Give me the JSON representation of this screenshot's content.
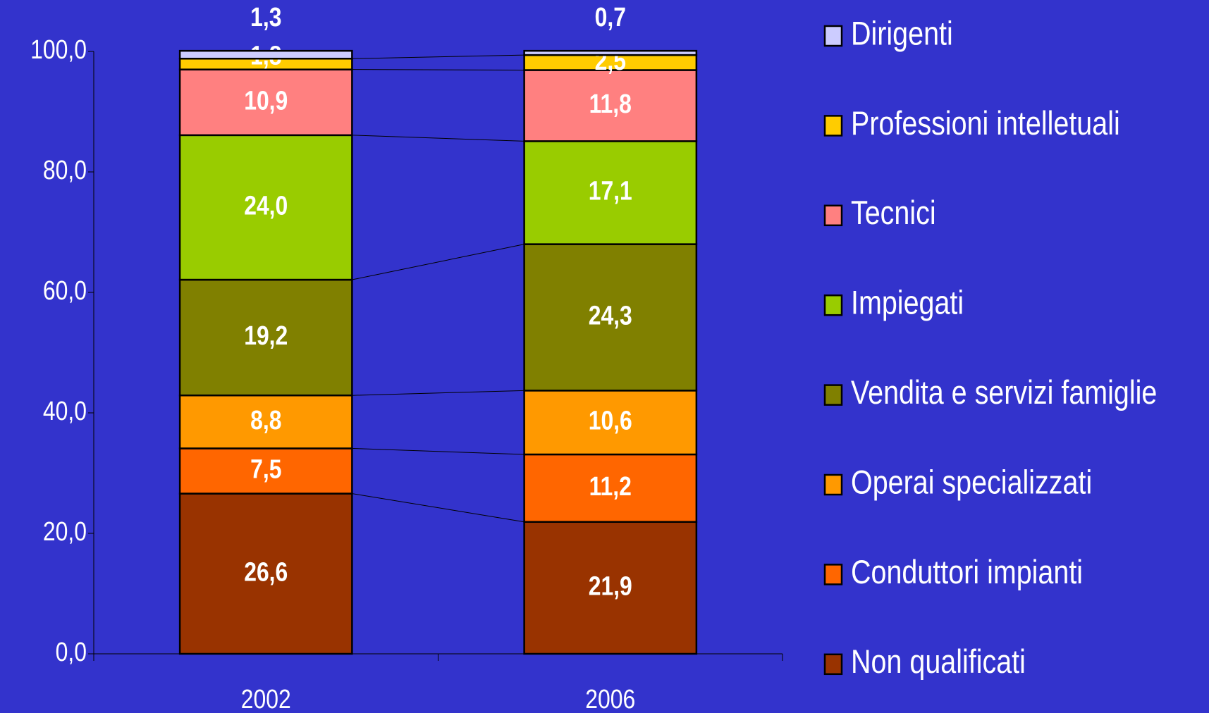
{
  "chart_data": {
    "type": "stacked_bar",
    "categories": [
      "2002",
      "2006"
    ],
    "series": [
      {
        "name": "Non qualificati",
        "color": "#993300",
        "values": [
          26.6,
          21.9
        ],
        "value_labels": [
          "26,6",
          "21,9"
        ]
      },
      {
        "name": "Conduttori impianti",
        "color": "#ff6600",
        "values": [
          7.5,
          11.2
        ],
        "value_labels": [
          "7,5",
          "11,2"
        ]
      },
      {
        "name": "Operai specializzati",
        "color": "#ff9900",
        "values": [
          8.8,
          10.6
        ],
        "value_labels": [
          "8,8",
          "10,6"
        ]
      },
      {
        "name": "Vendita e servizi famiglie",
        "color": "#808000",
        "values": [
          19.2,
          24.3
        ],
        "value_labels": [
          "19,2",
          "24,3"
        ]
      },
      {
        "name": "Impiegati",
        "color": "#99cc00",
        "values": [
          24.0,
          17.1
        ],
        "value_labels": [
          "24,0",
          "17,1"
        ]
      },
      {
        "name": "Tecnici",
        "color": "#ff8080",
        "values": [
          10.9,
          11.8
        ],
        "value_labels": [
          "10,9",
          "11,8"
        ]
      },
      {
        "name": "Professioni intelletuali",
        "color": "#ffcc00",
        "values": [
          1.8,
          2.5
        ],
        "value_labels": [
          "1,8",
          "2,5"
        ]
      },
      {
        "name": "Dirigenti",
        "color": "#ccccff",
        "values": [
          1.3,
          0.7
        ],
        "value_labels": [
          "1,3",
          "0,7"
        ]
      }
    ],
    "ylim": [
      0,
      100
    ],
    "yticks": [
      {
        "value": 0,
        "label": "0,0"
      },
      {
        "value": 20,
        "label": "20,0"
      },
      {
        "value": 40,
        "label": "40,0"
      },
      {
        "value": 60,
        "label": "60,0"
      },
      {
        "value": 80,
        "label": "80,0"
      },
      {
        "value": 100,
        "label": "100,0"
      }
    ],
    "legend": "right"
  }
}
